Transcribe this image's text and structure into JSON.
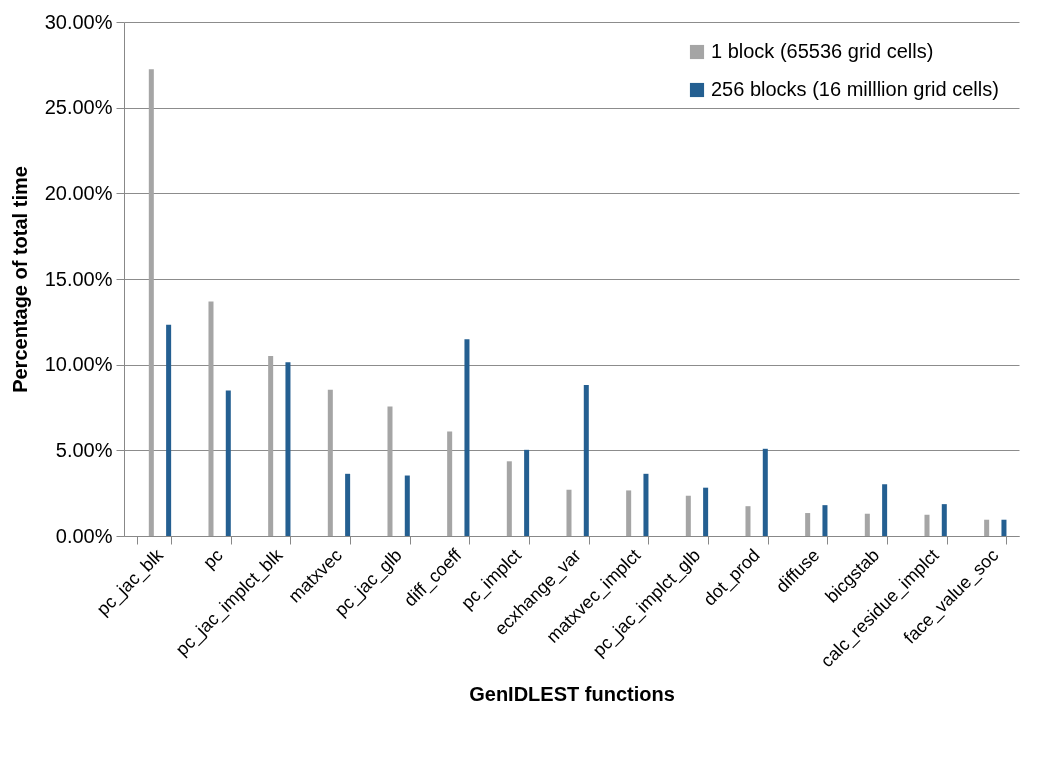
{
  "chart_data": {
    "type": "bar",
    "xlabel": "GenIDLEST functions",
    "ylabel": "Percentage of total time",
    "categories": [
      "pc_jac_blk",
      "pc",
      "pc_jac_implct_blk",
      "matxvec",
      "pc_jac_glb",
      "diff_coeff",
      "pc_implct",
      "ecxhange_var",
      "matxvec_implct",
      "pc_jac_implct_glb",
      "dot_prod",
      "diffuse",
      "bicgstab",
      "calc_residue_implct",
      "face_value_soc"
    ],
    "series": [
      {
        "name": "1 block (65536 grid cells)",
        "color": "#a5a5a5",
        "values": [
          27.24,
          13.68,
          10.5,
          8.53,
          7.56,
          6.1,
          4.36,
          2.7,
          2.66,
          2.35,
          1.74,
          1.34,
          1.3,
          1.24,
          0.95
        ]
      },
      {
        "name": "256 blocks (16 milllion grid cells)",
        "color": "#245f91",
        "values": [
          12.33,
          8.49,
          10.14,
          3.63,
          3.53,
          11.49,
          5.03,
          8.82,
          3.63,
          2.82,
          5.09,
          1.8,
          3.02,
          1.86,
          0.95
        ]
      }
    ],
    "ylim": [
      0,
      30
    ],
    "yticks": [
      {
        "value": 0,
        "label": "0.00%"
      },
      {
        "value": 5,
        "label": "5.00%"
      },
      {
        "value": 10,
        "label": "10.00%"
      },
      {
        "value": 15,
        "label": "15.00%"
      },
      {
        "value": 20,
        "label": "20.00%"
      },
      {
        "value": 25,
        "label": "25.00%"
      },
      {
        "value": 30,
        "label": "30.00%"
      }
    ],
    "grid": "y",
    "legend": "top right"
  }
}
